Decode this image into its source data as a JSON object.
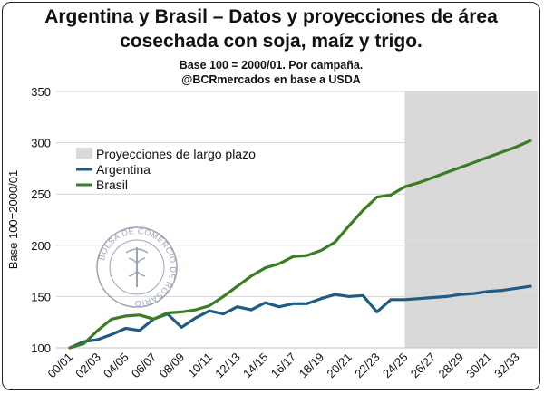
{
  "chart_data": {
    "type": "line",
    "title_line1": "Argentina y Brasil – Datos y proyecciones de área",
    "title_line2": "cosechada con soja, maíz y trigo.",
    "subtitle_line1": "Base 100 = 2000/01. Por campaña.",
    "subtitle_line2": "@BCRmercados en base a USDA",
    "xlabel": "",
    "ylabel": "Base 100=2000/01",
    "ylim": [
      100,
      350
    ],
    "yticks": [
      100,
      150,
      200,
      250,
      300,
      350
    ],
    "grid": "horizontal",
    "legend_position": "top-left",
    "x": [
      "00/01",
      "01/02",
      "02/03",
      "03/04",
      "04/05",
      "05/06",
      "06/07",
      "07/08",
      "08/09",
      "09/10",
      "10/11",
      "11/12",
      "12/13",
      "13/14",
      "14/15",
      "15/16",
      "16/17",
      "17/18",
      "18/19",
      "19/20",
      "20/21",
      "21/22",
      "22/23",
      "23/24",
      "24/25",
      "25/26",
      "26/27",
      "27/28",
      "28/29",
      "29/30",
      "30/21",
      "31/32",
      "32/33",
      "33/34"
    ],
    "x_tick_labels": [
      "00/01",
      "02/03",
      "04/05",
      "06/07",
      "08/09",
      "10/11",
      "12/13",
      "14/15",
      "16/17",
      "18/19",
      "20/21",
      "22/23",
      "24/25",
      "26/27",
      "28/29",
      "30/21",
      "32/33"
    ],
    "projection": {
      "name": "Proyecciones de largo plazo",
      "from": "24/25",
      "to": "33/34",
      "color": "#d9d9d9"
    },
    "series": [
      {
        "name": "Argentina",
        "color": "#1f5c84",
        "values": [
          100,
          106,
          108,
          113,
          119,
          117,
          128,
          133,
          120,
          129,
          136,
          133,
          140,
          137,
          144,
          140,
          143,
          143,
          148,
          152,
          150,
          151,
          135,
          147,
          147,
          148,
          149,
          150,
          152,
          153,
          155,
          156,
          158,
          160
        ]
      },
      {
        "name": "Brasil",
        "color": "#3a7d22",
        "values": [
          100,
          104,
          117,
          128,
          131,
          132,
          128,
          134,
          135,
          137,
          141,
          150,
          160,
          170,
          178,
          182,
          189,
          190,
          195,
          203,
          219,
          234,
          247,
          249,
          257,
          261,
          266,
          271,
          276,
          281,
          286,
          291,
          296,
          302
        ]
      }
    ]
  },
  "watermark": {
    "text": "BOLSA DE COMERCIO DE ROSARIO",
    "icon": "caduceus-seal-icon"
  }
}
